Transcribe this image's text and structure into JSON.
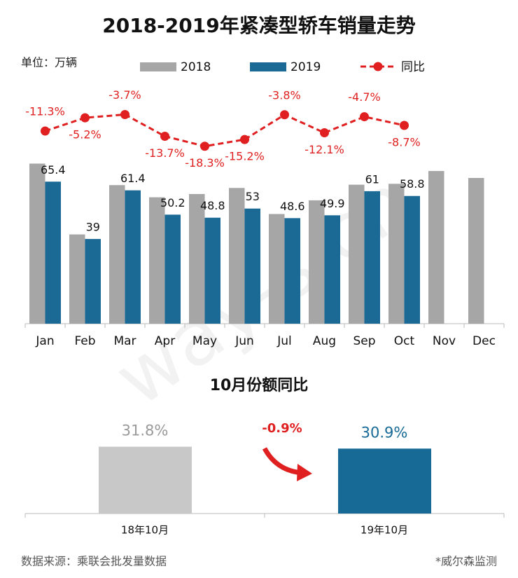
{
  "chart_data": [
    {
      "type": "bar",
      "title": "2018-2019年紧凑型轿车销量走势",
      "unit": "单位：万辆",
      "categories": [
        "Jan",
        "Feb",
        "Mar",
        "Apr",
        "May",
        "Jun",
        "Jul",
        "Aug",
        "Sep",
        "Oct",
        "Nov",
        "Dec"
      ],
      "ylim": [
        0,
        100
      ],
      "y2lim": [
        -100,
        0
      ],
      "series": [
        {
          "name": "2018",
          "color": "#a6a6a6",
          "values": [
            73.7,
            41.1,
            63.8,
            58.2,
            59.7,
            62.5,
            50.5,
            56.8,
            64.0,
            64.4,
            70.3,
            67.1
          ]
        },
        {
          "name": "2019",
          "color": "#1b6a96",
          "values": [
            65.4,
            39.0,
            61.4,
            50.2,
            48.8,
            53.0,
            48.6,
            49.9,
            61.0,
            58.8,
            null,
            null
          ]
        },
        {
          "name": "同比",
          "color": "#e02020",
          "type": "line",
          "axis": "y2",
          "values": [
            -11.3,
            -5.2,
            -3.7,
            -13.7,
            -18.3,
            -15.2,
            -3.8,
            -12.1,
            -4.7,
            -8.7,
            null,
            null
          ],
          "value_labels": [
            "-11.3%",
            "-5.2%",
            "-3.7%",
            "-13.7%",
            "-18.3%",
            "-15.2%",
            "-3.8%",
            "-12.1%",
            "-4.7%",
            "-8.7%",
            null,
            null
          ]
        }
      ]
    },
    {
      "type": "bar",
      "title": "10月份额同比",
      "categories": [
        "18年10月",
        "19年10月"
      ],
      "values": [
        31.8,
        30.9
      ],
      "value_labels": [
        "31.8%",
        "30.9%"
      ],
      "colors": [
        "#c8c8c8",
        "#176a96"
      ],
      "ylim": [
        0,
        35
      ],
      "annotation": "-0.9%"
    }
  ],
  "watermark": "way-s.cn",
  "footer": {
    "source": "数据来源：乘联会批发量数据",
    "note": "*威尔森监测"
  }
}
